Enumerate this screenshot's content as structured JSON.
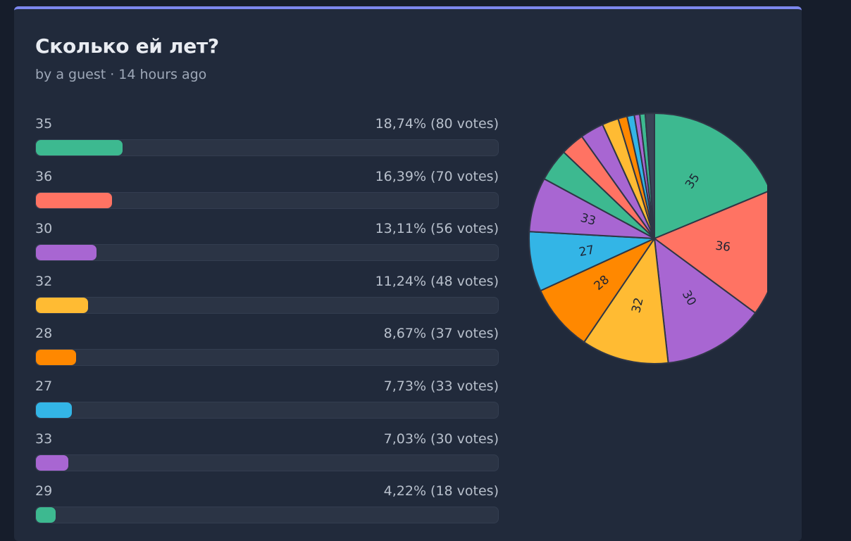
{
  "poll": {
    "title": "Сколько ей лет?",
    "meta": "by a guest · 14 hours ago",
    "options": [
      {
        "label": "35",
        "stats": "18,74% (80 votes)",
        "percent": 18.74,
        "color": "#3db990"
      },
      {
        "label": "36",
        "stats": "16,39% (70 votes)",
        "percent": 16.39,
        "color": "#ff7363"
      },
      {
        "label": "30",
        "stats": "13,11% (56 votes)",
        "percent": 13.11,
        "color": "#a866d2"
      },
      {
        "label": "32",
        "stats": "11,24% (48 votes)",
        "percent": 11.24,
        "color": "#ffbb33"
      },
      {
        "label": "28",
        "stats": "8,67% (37 votes)",
        "percent": 8.67,
        "color": "#ff8800"
      },
      {
        "label": "27",
        "stats": "7,73% (33 votes)",
        "percent": 7.73,
        "color": "#33b5e6"
      },
      {
        "label": "33",
        "stats": "7,03% (30 votes)",
        "percent": 7.03,
        "color": "#a866d2"
      },
      {
        "label": "29",
        "stats": "4,22% (18 votes)",
        "percent": 4.22,
        "color": "#3db990"
      }
    ]
  },
  "chart_data": {
    "type": "pie",
    "slices": [
      {
        "label": "35",
        "value": 80,
        "color": "#3db990",
        "show_label": true
      },
      {
        "label": "36",
        "value": 70,
        "color": "#ff7363",
        "show_label": true
      },
      {
        "label": "30",
        "value": 56,
        "color": "#a866d2",
        "show_label": true
      },
      {
        "label": "32",
        "value": 48,
        "color": "#ffbb33",
        "show_label": true
      },
      {
        "label": "28",
        "value": 37,
        "color": "#ff8800",
        "show_label": true
      },
      {
        "label": "27",
        "value": 33,
        "color": "#33b5e6",
        "show_label": true
      },
      {
        "label": "33",
        "value": 30,
        "color": "#a866d2",
        "show_label": true
      },
      {
        "label": "29",
        "value": 18,
        "color": "#3db990",
        "show_label": false
      },
      {
        "label": "",
        "value": 13,
        "color": "#ff7363",
        "show_label": false
      },
      {
        "label": "",
        "value": 13,
        "color": "#a866d2",
        "show_label": false
      },
      {
        "label": "",
        "value": 9,
        "color": "#ffbb33",
        "show_label": false
      },
      {
        "label": "",
        "value": 5,
        "color": "#ff8800",
        "show_label": false
      },
      {
        "label": "",
        "value": 4,
        "color": "#33b5e6",
        "show_label": false
      },
      {
        "label": "",
        "value": 3,
        "color": "#a866d2",
        "show_label": false
      },
      {
        "label": "",
        "value": 3,
        "color": "#3db990",
        "show_label": false
      },
      {
        "label": "",
        "value": 5,
        "color": "#3a4356",
        "show_label": false
      }
    ]
  }
}
